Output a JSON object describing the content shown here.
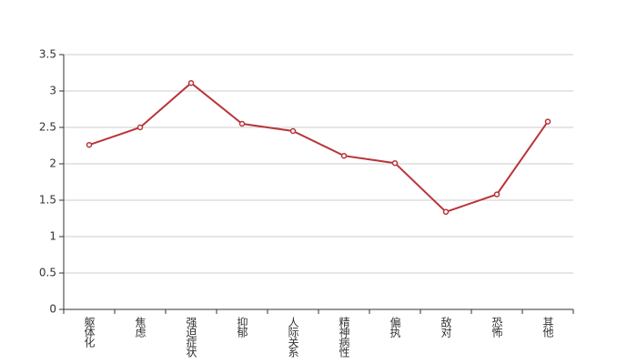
{
  "chart_data": {
    "type": "line",
    "categories": [
      "躯体化",
      "焦虑",
      "强迫症状",
      "抑郁",
      "人际关系",
      "精神病性",
      "偏执",
      "敌对",
      "恐怖",
      "其他"
    ],
    "series": [
      {
        "color": "#b8363a",
        "values": [
          2.26,
          2.5,
          3.11,
          2.55,
          2.45,
          2.11,
          2.01,
          1.34,
          1.58,
          2.58
        ]
      }
    ],
    "ylim": [
      0,
      3.5
    ],
    "yticks": [
      0,
      0.5,
      1,
      1.5,
      2,
      2.5,
      3,
      3.5
    ],
    "grid": true
  }
}
